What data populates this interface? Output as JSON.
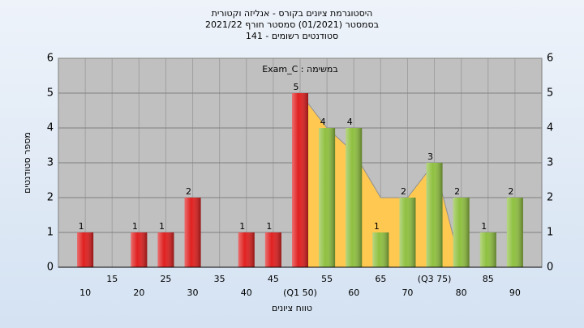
{
  "chart_data": {
    "type": "bar",
    "title": "היסטוגרמת ציונים בקורס - אנליזה וקטורית",
    "subtitle": "בסמסטר  (01/2021)  סמסטר חורף 2021/22",
    "subtitle2": "סטודנטים רשומים - 141",
    "annotation": "Exam_C : במשימה",
    "y_label": "מספר סטודנטים",
    "x_label": "טווח ציונים",
    "categories": [
      "10",
      "15",
      "20",
      "25",
      "30",
      "35",
      "40",
      "45",
      "(Q1 50)",
      "55",
      "60",
      "65",
      "70",
      "(Q3 75)",
      "80",
      "85",
      "90"
    ],
    "values": [
      1,
      0,
      1,
      1,
      2,
      0,
      1,
      1,
      5,
      4,
      4,
      1,
      2,
      3,
      2,
      1,
      2
    ],
    "colors": [
      "#e02020",
      "#e02020",
      "#e02020",
      "#e02020",
      "#e02020",
      "#e02020",
      "#e02020",
      "#e02020",
      "#e02020",
      "#8fc040",
      "#8fc040",
      "#8fc040",
      "#8fc040",
      "#8fc040",
      "#8fc040",
      "#8fc040",
      "#8fc040"
    ],
    "area": {
      "color": "#ffc850",
      "values": [
        null,
        null,
        null,
        null,
        null,
        null,
        null,
        null,
        5,
        4,
        3.3,
        2,
        2,
        3,
        0,
        null,
        null
      ]
    },
    "ylim": [
      0,
      6
    ],
    "yticks": [
      0,
      1,
      2,
      3,
      4,
      5,
      6
    ],
    "grid": true
  }
}
